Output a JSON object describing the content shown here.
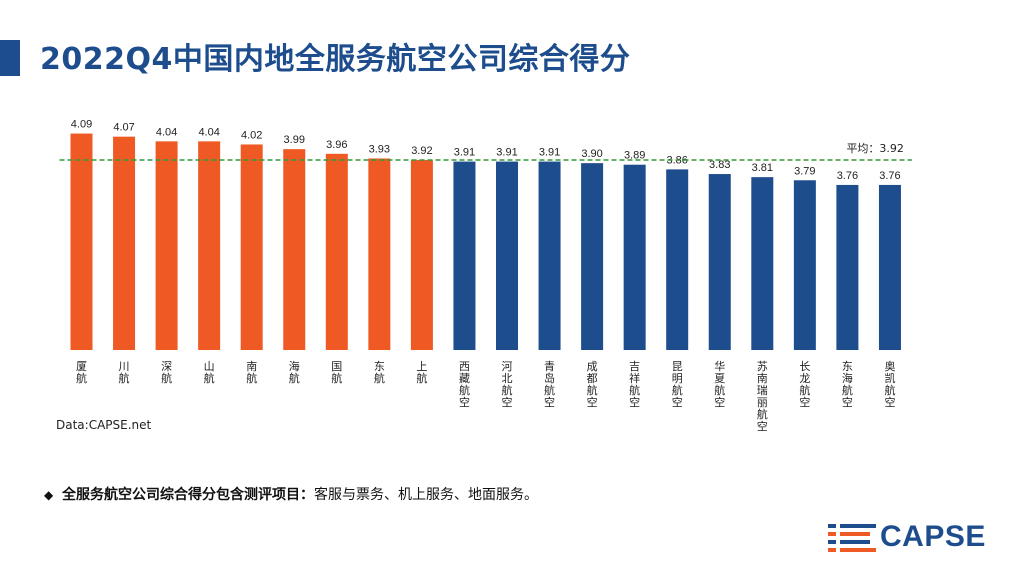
{
  "title": "2022Q4中国内地全服务航空公司综合得分",
  "source": "Data:CAPSE.net",
  "note": {
    "lead": "全服务航空公司综合得分包含测评项目：",
    "text": "客服与票务、机上服务、地面服务。"
  },
  "logo": {
    "text": "CAPSE"
  },
  "colors": {
    "highlight": "#ef5a24",
    "base": "#1d4d8c",
    "average_line": "#2e9b3b"
  },
  "chart_data": {
    "type": "bar",
    "title": "2022Q4中国内地全服务航空公司综合得分",
    "categories": [
      "厦航",
      "川航",
      "深航",
      "山航",
      "南航",
      "海航",
      "国航",
      "东航",
      "上航",
      "西藏航空",
      "河北航空",
      "青岛航空",
      "成都航空",
      "吉祥航空",
      "昆明航空",
      "华夏航空",
      "苏南瑞丽航空",
      "长龙航空",
      "东海航空",
      "奥凯航空"
    ],
    "values": [
      4.09,
      4.07,
      4.04,
      4.04,
      4.02,
      3.99,
      3.96,
      3.93,
      3.92,
      3.91,
      3.91,
      3.91,
      3.9,
      3.89,
      3.86,
      3.83,
      3.81,
      3.79,
      3.76,
      3.76
    ],
    "value_labels": [
      "4.09",
      "4.07",
      "4.04",
      "4.04",
      "4.02",
      "3.99",
      "3.96",
      "3.93",
      "3.92",
      "3.91",
      "3.91",
      "3.91",
      "3.90",
      "3.89",
      "3.86",
      "3.83",
      "3.81",
      "3.79",
      "3.76",
      "3.76"
    ],
    "highlight_count": 9,
    "average": {
      "label": "平均：3.92",
      "value": 3.92
    },
    "ylim": [
      2.7,
      4.1
    ],
    "xlabel": "",
    "ylabel": "",
    "grid": false
  }
}
